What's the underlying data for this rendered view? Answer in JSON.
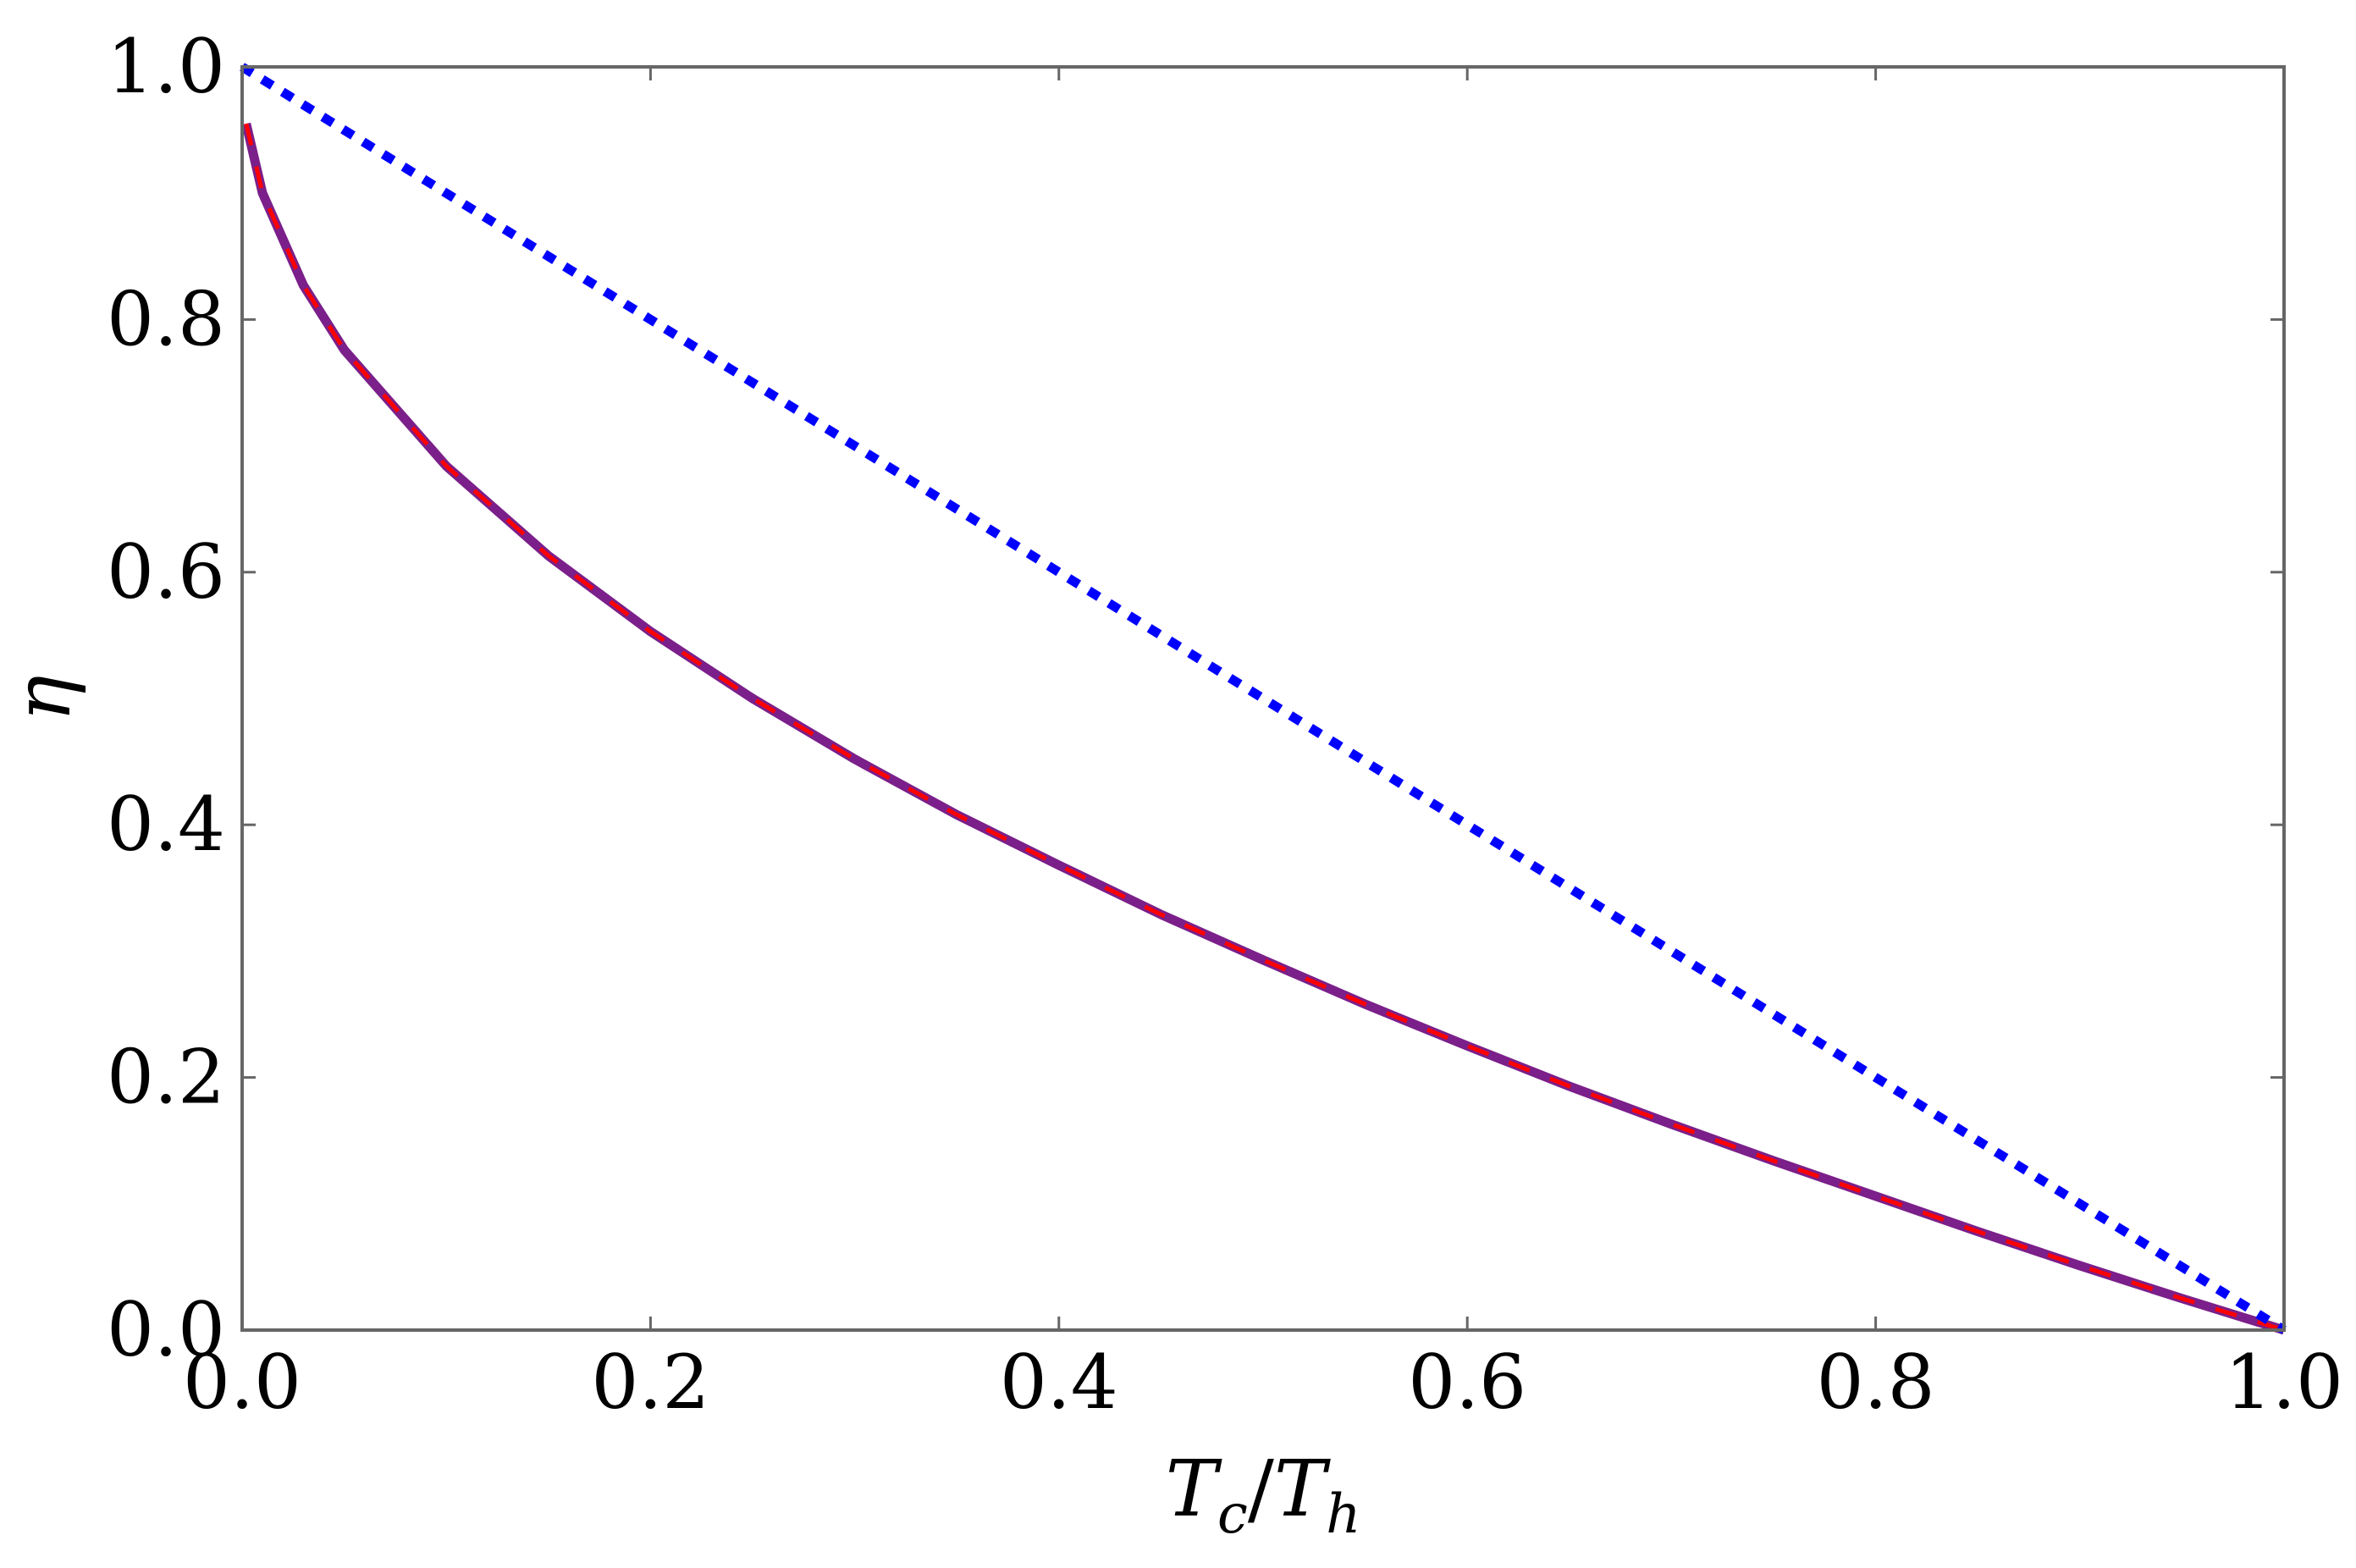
{
  "chart_data": {
    "type": "line",
    "title": "",
    "xlabel": "T_c/T_h",
    "ylabel": "η",
    "xlabel_parts": {
      "a": "T",
      "a_sub": "c",
      "sep": "/",
      "b": "T",
      "b_sub": "h"
    },
    "xlim": [
      0.0,
      1.0
    ],
    "ylim": [
      0.0,
      1.0
    ],
    "x_ticks": [
      "0.0",
      "0.2",
      "0.4",
      "0.6",
      "0.8",
      "1.0"
    ],
    "y_ticks": [
      "0.0",
      "0.2",
      "0.4",
      "0.6",
      "0.8",
      "1.0"
    ],
    "grid": false,
    "legend": "none",
    "series": [
      {
        "style": "dotted",
        "color": "#0000ff",
        "x": [
          0.0,
          1.0
        ],
        "y": [
          1.0,
          0.0
        ]
      },
      {
        "style": "solid",
        "color": "#7b1f8a",
        "x": [
          0.002,
          0.01,
          0.03,
          0.05,
          0.1,
          0.15,
          0.2,
          0.25,
          0.3,
          0.35,
          0.4,
          0.45,
          0.5,
          0.55,
          0.6,
          0.65,
          0.7,
          0.75,
          0.8,
          0.85,
          0.9,
          0.95,
          1.0
        ],
        "y": [
          0.955,
          0.9,
          0.827,
          0.776,
          0.684,
          0.613,
          0.553,
          0.5,
          0.452,
          0.408,
          0.368,
          0.329,
          0.293,
          0.258,
          0.225,
          0.193,
          0.163,
          0.134,
          0.106,
          0.078,
          0.051,
          0.025,
          0.0
        ]
      },
      {
        "style": "dashed",
        "color": "#ff0000",
        "x": [
          0.002,
          0.01,
          0.03,
          0.05,
          0.1,
          0.15,
          0.2,
          0.25,
          0.3,
          0.35,
          0.4,
          0.45,
          0.5,
          0.55,
          0.6,
          0.65,
          0.7,
          0.75,
          0.8,
          0.85,
          0.9,
          0.95,
          1.0
        ],
        "y": [
          0.955,
          0.9,
          0.827,
          0.776,
          0.684,
          0.613,
          0.553,
          0.5,
          0.452,
          0.408,
          0.368,
          0.329,
          0.293,
          0.258,
          0.225,
          0.193,
          0.163,
          0.134,
          0.106,
          0.078,
          0.051,
          0.025,
          0.0
        ]
      }
    ]
  }
}
